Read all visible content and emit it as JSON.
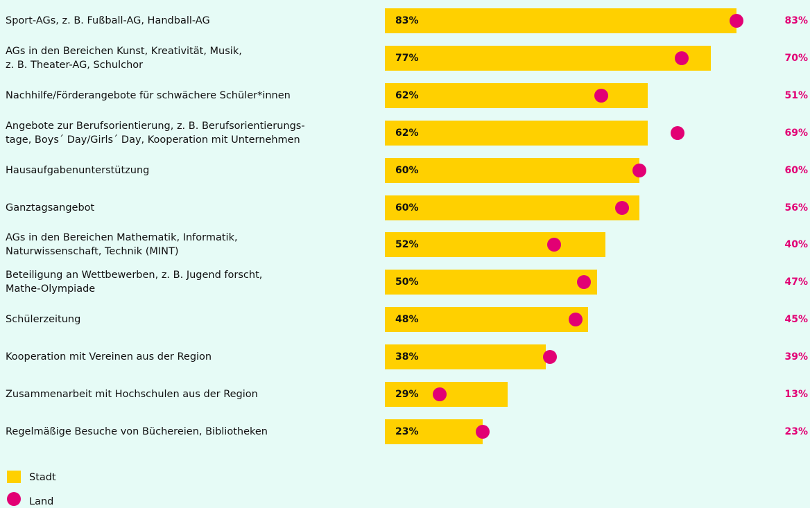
{
  "chart_data": {
    "type": "bar",
    "categories": [
      "Sport-AGs, z. B. Fußball-AG, Handball-AG",
      "AGs in den Bereichen Kunst, Kreativität, Musik,\nz. B. Theater-AG, Schulchor",
      "Nachhilfe/Förderangebote für schwächere Schüler*innen",
      "Angebote zur Berufsorientierung, z. B. Berufsorientierungs-\ntage, Boys´ Day/Girls´ Day, Kooperation mit Unternehmen",
      "Hausaufgabenunterstützung",
      "Ganztagsangebot",
      "AGs in den Bereichen Mathematik, Informatik,\nNaturwissenschaft, Technik (MINT)",
      "Beteiligung an Wettbewerben, z. B. Jugend forscht,\nMathe-Olympiade",
      "Schülerzeitung",
      "Kooperation mit Vereinen aus der Region",
      "Zusammenarbeit mit Hochschulen aus der Region",
      "Regelmäßige Besuche von Büchereien, Bibliotheken"
    ],
    "series": [
      {
        "name": "Stadt",
        "color": "#ffd000",
        "values": [
          83,
          77,
          62,
          62,
          60,
          60,
          52,
          50,
          48,
          38,
          29,
          23
        ],
        "value_labels": [
          "83%",
          "77%",
          "62%",
          "62%",
          "60%",
          "60%",
          "52%",
          "50%",
          "48%",
          "38%",
          "29%",
          "23%"
        ]
      },
      {
        "name": "Land",
        "color": "#e20074",
        "values": [
          83,
          70,
          51,
          69,
          60,
          56,
          40,
          47,
          45,
          39,
          13,
          23
        ],
        "value_labels": [
          "83%",
          "70%",
          "51%",
          "69%",
          "60%",
          "56%",
          "40%",
          "47%",
          "45%",
          "39%",
          "13%",
          "23%"
        ]
      }
    ]
  }
}
